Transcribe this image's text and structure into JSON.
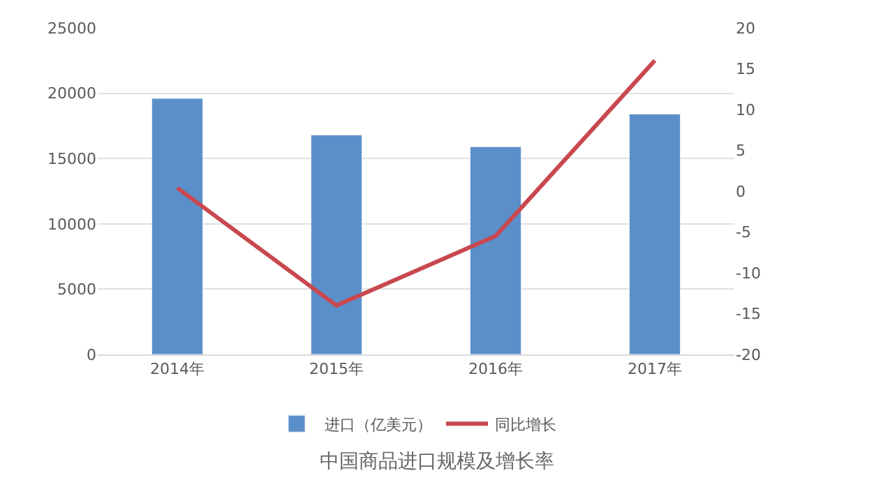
{
  "chart_data": {
    "type": "bar",
    "title": "中国商品进口规模及增长率",
    "categories": [
      "2014年",
      "2015年",
      "2016年",
      "2017年"
    ],
    "series": [
      {
        "name": "进口（亿美元）",
        "color": "#5b8fc9",
        "values": [
          19600,
          16800,
          15900,
          18400
        ]
      },
      {
        "name": "同比增长",
        "type": "line",
        "axis": "y2",
        "color": "#c9484f",
        "values": [
          0.4,
          -14,
          -5.5,
          16
        ]
      }
    ],
    "ylim": [
      0,
      25000
    ],
    "yticks": [
      0,
      5000,
      10000,
      15000,
      20000,
      25000
    ],
    "y2lim": [
      -20,
      20
    ],
    "y2ticks": [
      -20,
      -15,
      -10,
      -5,
      0,
      5,
      10,
      15,
      20
    ],
    "grid": "y",
    "legend": "bottom",
    "marker": "none"
  }
}
